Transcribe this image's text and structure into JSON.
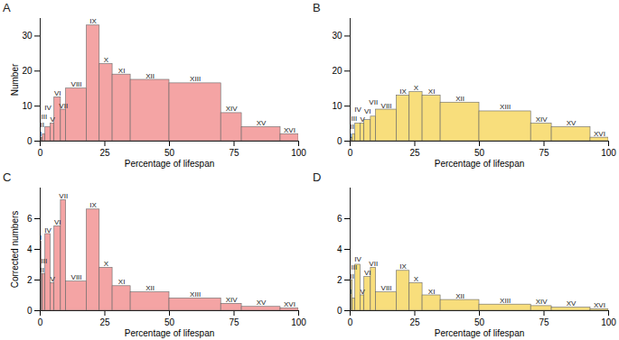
{
  "chart_data": [
    {
      "type": "histogram",
      "title": "A",
      "bins": [
        0,
        0.5,
        1,
        2,
        4,
        5.5,
        8,
        10,
        18,
        23,
        28,
        35,
        50,
        70,
        78,
        93,
        100
      ],
      "counts": [
        1,
        1,
        2,
        4,
        5,
        12.5,
        9,
        15,
        33,
        22,
        19,
        17.5,
        16.5,
        8,
        4,
        2
      ],
      "categories": [
        "I",
        "II",
        "III",
        "IV",
        "V",
        "VI",
        "VII",
        "VIII",
        "IX",
        "X",
        "XI",
        "XII",
        "XIII",
        "XIV",
        "XV",
        "XVI"
      ],
      "color": "#f4a4a4",
      "xlim": [
        0,
        100
      ],
      "xticks": [
        0,
        25,
        50,
        75,
        100
      ],
      "ylim": [
        0,
        35
      ],
      "yticks": [
        0,
        10,
        20,
        30
      ],
      "x_label": "Percentage of lifespan",
      "y_label": "Number"
    },
    {
      "type": "histogram",
      "title": "B",
      "bins": [
        0,
        0.5,
        1,
        2,
        4,
        5.5,
        8,
        10,
        18,
        23,
        28,
        35,
        50,
        70,
        78,
        93,
        100
      ],
      "counts": [
        0.5,
        1,
        2,
        5,
        5,
        6,
        7,
        9,
        13,
        14,
        13,
        11,
        8.5,
        5,
        4,
        1
      ],
      "categories": [
        "I",
        "II",
        "III",
        "IV",
        "V",
        "VI",
        "VII",
        "VIII",
        "IX",
        "X",
        "XI",
        "XII",
        "XIII",
        "XIV",
        "XV",
        "XVI"
      ],
      "color": "#f8de7c",
      "xlim": [
        0,
        100
      ],
      "xticks": [
        0,
        25,
        50,
        75,
        100
      ],
      "ylim": [
        0,
        35
      ],
      "yticks": [
        0,
        10,
        20,
        30
      ],
      "x_label": "Percentage of lifespan"
    },
    {
      "type": "histogram",
      "title": "C",
      "bins": [
        0,
        0.5,
        1,
        2,
        4,
        5.5,
        8,
        10,
        18,
        23,
        28,
        35,
        50,
        70,
        78,
        93,
        100
      ],
      "counts": [
        4.5,
        2.4,
        2.4,
        5,
        1.8,
        5.5,
        7.2,
        1.9,
        6.6,
        2.8,
        1.6,
        1.2,
        0.8,
        0.45,
        0.25,
        0.15
      ],
      "categories": [
        "I",
        "II",
        "III",
        "IV",
        "V",
        "VI",
        "VII",
        "VIII",
        "IX",
        "X",
        "XI",
        "XII",
        "XIII",
        "XIV",
        "XV",
        "XVI"
      ],
      "color": "#f4a4a4",
      "xlim": [
        0,
        100
      ],
      "xticks": [
        0,
        25,
        50,
        75,
        100
      ],
      "ylim": [
        0,
        8
      ],
      "yticks": [
        0,
        2,
        4,
        6
      ],
      "x_label": "Percentage of lifespan",
      "y_label": "Corrected numbers"
    },
    {
      "type": "histogram",
      "title": "D",
      "bins": [
        0,
        0.5,
        1,
        2,
        4,
        5.5,
        8,
        10,
        18,
        23,
        28,
        35,
        50,
        70,
        78,
        93,
        100
      ],
      "counts": [
        1,
        2,
        0.8,
        3,
        1,
        2.2,
        2.8,
        1.2,
        2.6,
        1.8,
        1,
        0.7,
        0.4,
        0.3,
        0.2,
        0.1
      ],
      "categories": [
        "I",
        "II",
        "III",
        "IV",
        "V",
        "VI",
        "VII",
        "VIII",
        "IX",
        "X",
        "XI",
        "XII",
        "XIII",
        "XIV",
        "XV",
        "XVI"
      ],
      "color": "#f8de7c",
      "xlim": [
        0,
        100
      ],
      "xticks": [
        0,
        25,
        50,
        75,
        100
      ],
      "ylim": [
        0,
        8
      ],
      "yticks": [
        0,
        2,
        4,
        6
      ],
      "x_label": "Percentage of lifespan"
    }
  ]
}
